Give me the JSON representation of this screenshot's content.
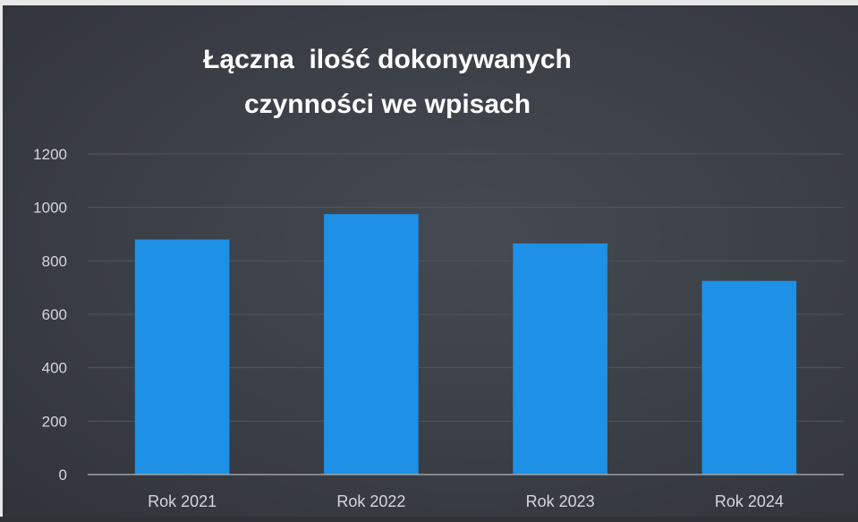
{
  "chart_data": {
    "type": "bar",
    "title": "Łączna  ilość dokonywanych\nczynności we wpisach",
    "categories": [
      "Rok 2021",
      "Rok 2022",
      "Rok 2023",
      "Rok 2024"
    ],
    "values": [
      880,
      975,
      865,
      725
    ],
    "ylim": [
      0,
      1200
    ],
    "yticks": [
      0,
      200,
      400,
      600,
      800,
      1000,
      1200
    ],
    "grid": true,
    "legend": "none",
    "colors": {
      "bar": "#1e90e6",
      "background": "#3a3e45",
      "gridline": "#52565d",
      "axis": "#9ea2a8",
      "text": "#d4d6da",
      "title": "#ffffff"
    }
  }
}
